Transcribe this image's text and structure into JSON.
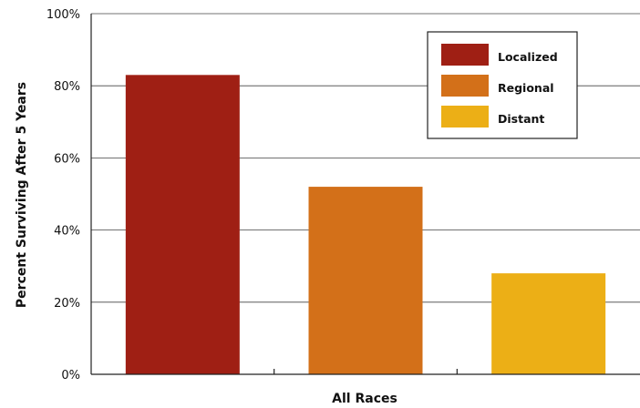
{
  "chart_data": {
    "type": "bar",
    "title": "",
    "xlabel": "All Races",
    "ylabel": "Percent Surviving After 5 Years",
    "ylim": [
      0,
      100
    ],
    "yticks": [
      "0%",
      "20%",
      "40%",
      "60%",
      "80%",
      "100%"
    ],
    "grid": "horizontal",
    "legend_position": "top-right",
    "categories": [
      "All Races"
    ],
    "series": [
      {
        "name": "Localized",
        "values": [
          83
        ],
        "color": "#9f1f14"
      },
      {
        "name": "Regional",
        "values": [
          52
        ],
        "color": "#d37019"
      },
      {
        "name": "Distant",
        "values": [
          28
        ],
        "color": "#ecaf16"
      }
    ]
  }
}
